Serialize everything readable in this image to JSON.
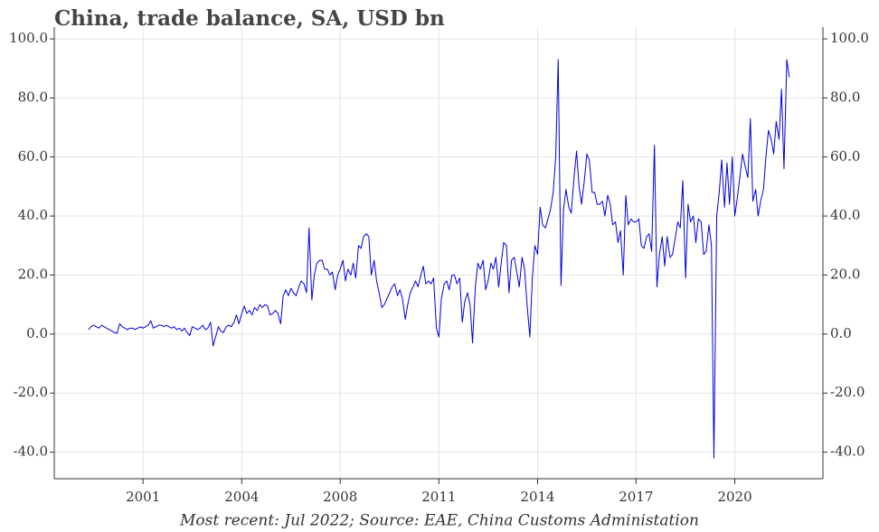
{
  "chart_data": {
    "type": "line",
    "title": "China, trade balance, SA, USD bn",
    "footnote": "Most recent: Jul 2022; Source: EAE, China Customs Administation",
    "color": "#0000e0",
    "grid": true,
    "xlim": [
      1998.9,
      2023.58
    ],
    "xticks": [
      {
        "value": 2001.75,
        "label": "2001"
      },
      {
        "value": 2004.92,
        "label": "2004"
      },
      {
        "value": 2008.08,
        "label": "2008"
      },
      {
        "value": 2011.25,
        "label": "2011"
      },
      {
        "value": 2014.42,
        "label": "2014"
      },
      {
        "value": 2017.58,
        "label": "2017"
      },
      {
        "value": 2020.75,
        "label": "2020"
      }
    ],
    "ylim": [
      -49,
      104
    ],
    "yticks": [
      {
        "value": -40,
        "label": "-40.0"
      },
      {
        "value": -20,
        "label": "-20.0"
      },
      {
        "value": 0,
        "label": "0.0"
      },
      {
        "value": 20,
        "label": "20.0"
      },
      {
        "value": 40,
        "label": "40.0"
      },
      {
        "value": 60,
        "label": "60.0"
      },
      {
        "value": 80,
        "label": "80.0"
      },
      {
        "value": 100,
        "label": "100.0"
      }
    ],
    "y2lim": [
      -49,
      104
    ],
    "y2ticks": [
      {
        "value": -40,
        "label": "-40.0"
      },
      {
        "value": -20,
        "label": "-20.0"
      },
      {
        "value": 0,
        "label": "0.0"
      },
      {
        "value": 20,
        "label": "20.0"
      },
      {
        "value": 40,
        "label": "40.0"
      },
      {
        "value": 60,
        "label": "60.0"
      },
      {
        "value": 80,
        "label": "80.0"
      },
      {
        "value": 100,
        "label": "100.0"
      }
    ],
    "x": [
      2000,
      2000.08,
      2000.17,
      2000.25,
      2000.33,
      2000.42,
      2000.5,
      2000.58,
      2000.67,
      2000.75,
      2000.83,
      2000.92,
      2001,
      2001.08,
      2001.17,
      2001.25,
      2001.33,
      2001.42,
      2001.5,
      2001.58,
      2001.67,
      2001.75,
      2001.83,
      2001.92,
      2002,
      2002.08,
      2002.17,
      2002.25,
      2002.33,
      2002.42,
      2002.5,
      2002.58,
      2002.67,
      2002.75,
      2002.83,
      2002.92,
      2003,
      2003.08,
      2003.17,
      2003.25,
      2003.33,
      2003.42,
      2003.5,
      2003.58,
      2003.67,
      2003.75,
      2003.83,
      2003.92,
      2004,
      2004.08,
      2004.17,
      2004.25,
      2004.33,
      2004.42,
      2004.5,
      2004.58,
      2004.67,
      2004.75,
      2004.83,
      2004.92,
      2005,
      2005.08,
      2005.17,
      2005.25,
      2005.33,
      2005.42,
      2005.5,
      2005.58,
      2005.67,
      2005.75,
      2005.83,
      2005.92,
      2006,
      2006.08,
      2006.17,
      2006.25,
      2006.33,
      2006.42,
      2006.5,
      2006.58,
      2006.67,
      2006.75,
      2006.83,
      2006.92,
      2007,
      2007.08,
      2007.17,
      2007.25,
      2007.33,
      2007.42,
      2007.5,
      2007.58,
      2007.67,
      2007.75,
      2007.83,
      2007.92,
      2008,
      2008.08,
      2008.17,
      2008.25,
      2008.33,
      2008.42,
      2008.5,
      2008.58,
      2008.67,
      2008.75,
      2008.83,
      2008.92,
      2009,
      2009.08,
      2009.17,
      2009.25,
      2009.33,
      2009.42,
      2009.5,
      2009.58,
      2009.67,
      2009.75,
      2009.83,
      2009.92,
      2010,
      2010.08,
      2010.17,
      2010.25,
      2010.33,
      2010.42,
      2010.5,
      2010.58,
      2010.67,
      2010.75,
      2010.83,
      2010.92,
      2011,
      2011.08,
      2011.17,
      2011.25,
      2011.33,
      2011.42,
      2011.5,
      2011.58,
      2011.67,
      2011.75,
      2011.83,
      2011.92,
      2012,
      2012.08,
      2012.17,
      2012.25,
      2012.33,
      2012.42,
      2012.5,
      2012.58,
      2012.67,
      2012.75,
      2012.83,
      2012.92,
      2013,
      2013.08,
      2013.17,
      2013.25,
      2013.33,
      2013.42,
      2013.5,
      2013.58,
      2013.67,
      2013.75,
      2013.83,
      2013.92,
      2014,
      2014.08,
      2014.17,
      2014.25,
      2014.33,
      2014.42,
      2014.5,
      2014.58,
      2014.67,
      2014.75,
      2014.83,
      2014.92,
      2015,
      2015.08,
      2015.17,
      2015.25,
      2015.33,
      2015.42,
      2015.5,
      2015.58,
      2015.67,
      2015.75,
      2015.83,
      2015.92,
      2016,
      2016.08,
      2016.17,
      2016.25,
      2016.33,
      2016.42,
      2016.5,
      2016.58,
      2016.67,
      2016.75,
      2016.83,
      2016.92,
      2017,
      2017.08,
      2017.17,
      2017.25,
      2017.33,
      2017.42,
      2017.5,
      2017.58,
      2017.67,
      2017.75,
      2017.83,
      2017.92,
      2018,
      2018.08,
      2018.17,
      2018.25,
      2018.33,
      2018.42,
      2018.5,
      2018.58,
      2018.67,
      2018.75,
      2018.83,
      2018.92,
      2019,
      2019.08,
      2019.17,
      2019.25,
      2019.33,
      2019.42,
      2019.5,
      2019.58,
      2019.67,
      2019.75,
      2019.83,
      2019.92,
      2020,
      2020.08,
      2020.17,
      2020.25,
      2020.33,
      2020.42,
      2020.5,
      2020.58,
      2020.67,
      2020.75,
      2020.83,
      2020.92,
      2021,
      2021.08,
      2021.17,
      2021.25,
      2021.33,
      2021.42,
      2021.5,
      2021.58,
      2021.67,
      2021.75,
      2021.83,
      2021.92,
      2022,
      2022.08,
      2022.17,
      2022.25,
      2022.33,
      2022.42,
      2022.5
    ],
    "values": [
      1.5,
      2.5,
      3,
      2.5,
      2,
      3,
      2.5,
      2,
      1.5,
      1,
      0.5,
      0.3,
      3.5,
      2.5,
      2,
      1.5,
      2,
      2,
      1.5,
      2,
      2.5,
      2,
      2.5,
      3,
      4.5,
      2,
      2.5,
      3,
      3,
      2.5,
      3,
      2.5,
      2,
      2.5,
      1.5,
      2,
      1,
      2,
      0.5,
      -0.5,
      2.5,
      2,
      1.5,
      2,
      3,
      1.5,
      2,
      4,
      -4,
      -1,
      2.5,
      1,
      0.5,
      2.5,
      3,
      2.5,
      4,
      6.5,
      3.5,
      7,
      9.5,
      7,
      8,
      6.5,
      9,
      8,
      10,
      9,
      10,
      9.5,
      6.5,
      7,
      8,
      7,
      3.5,
      13,
      15,
      13,
      15.5,
      14,
      13,
      16,
      18,
      17,
      14,
      36,
      11.5,
      20,
      24,
      25,
      25,
      22,
      22,
      20,
      21,
      15,
      20,
      22,
      25,
      18,
      22,
      20,
      24,
      19,
      30,
      29,
      33,
      34,
      33,
      20,
      25,
      18,
      14,
      9,
      10,
      12,
      14,
      16,
      17,
      13,
      15,
      12,
      5,
      10,
      14,
      16,
      18,
      16,
      20,
      23,
      17,
      18,
      17,
      19,
      2,
      -1,
      12,
      17,
      18,
      15,
      20,
      20,
      17,
      19,
      4,
      11,
      14,
      10,
      -3,
      16,
      24,
      22,
      25,
      15,
      18,
      24,
      22,
      26,
      16,
      24,
      31,
      30,
      14,
      25,
      26,
      21,
      16,
      26,
      22,
      10,
      -1,
      19,
      30,
      27,
      43,
      37,
      36,
      39,
      42,
      48,
      60,
      93,
      16.5,
      42,
      49,
      43,
      41,
      52,
      62,
      50,
      44,
      52,
      61,
      59,
      48,
      48,
      44,
      44,
      45,
      40,
      47,
      44,
      37,
      38,
      31,
      35,
      20,
      47,
      37,
      39,
      38,
      38,
      39,
      30,
      29,
      33,
      34,
      28,
      64,
      16,
      27,
      33,
      23,
      33,
      26,
      27,
      32,
      38,
      36,
      52,
      19,
      44,
      38,
      40,
      31,
      39,
      38,
      27,
      28,
      37,
      30,
      -42,
      40,
      48,
      59,
      43,
      58,
      44,
      60,
      40,
      46,
      54,
      61,
      57,
      53,
      73,
      45,
      49,
      40,
      45,
      49,
      60,
      69,
      66,
      61,
      72,
      66,
      83,
      56,
      93,
      87
    ]
  }
}
